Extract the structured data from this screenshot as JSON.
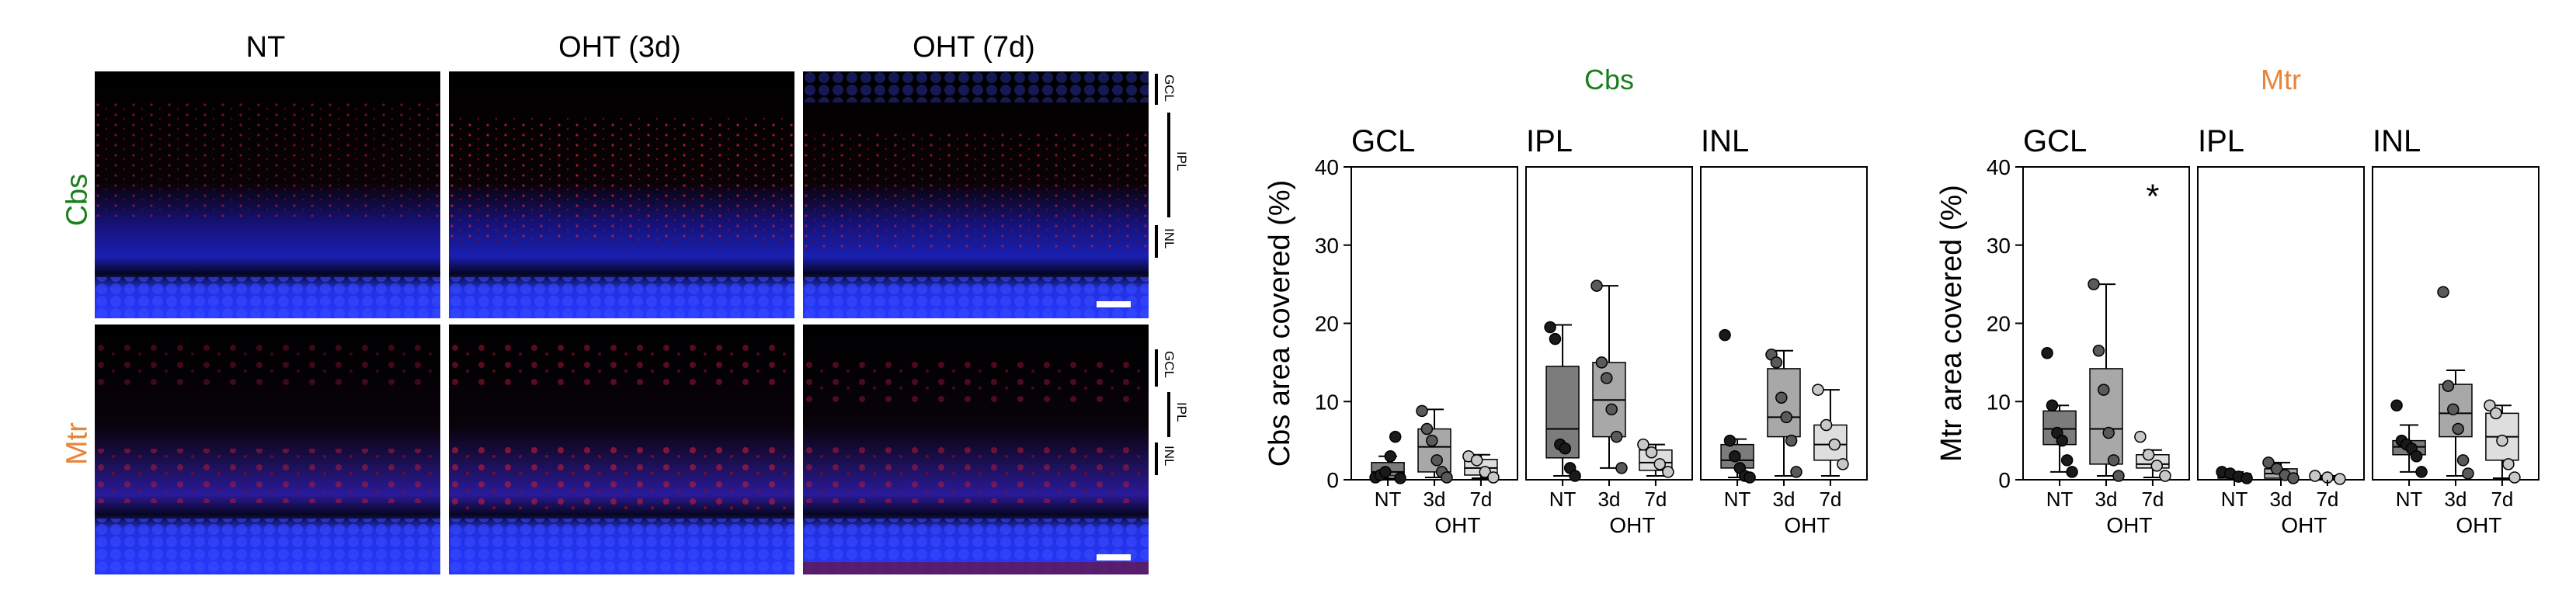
{
  "micrographs": {
    "column_titles": [
      "NT",
      "OHT (3d)",
      "OHT (7d)"
    ],
    "row_labels": [
      {
        "text": "Cbs",
        "color": "#1a7f1a"
      },
      {
        "text": "Mtr",
        "color": "#e8843a"
      }
    ],
    "layer_labels": [
      "GCL",
      "IPL",
      "INL"
    ]
  },
  "chart_data": [
    {
      "type": "box",
      "title": "Cbs",
      "title_color": "#1a7f1a",
      "ylabel": "Cbs area covered (%)",
      "ylim": [
        0,
        40
      ],
      "yticks": [
        0,
        10,
        20,
        30,
        40
      ],
      "categories": [
        "NT",
        "3d",
        "7d"
      ],
      "group_label": "OHT",
      "panels": [
        {
          "name": "GCL",
          "boxes": [
            {
              "category": "NT",
              "q1": 0.5,
              "median": 1.0,
              "q3": 2.2,
              "whisker_low": 0.2,
              "whisker_high": 3.0,
              "points": [
                0.3,
                0.6,
                1.0,
                3.0,
                5.5,
                0.2
              ]
            },
            {
              "category": "3d",
              "q1": 1.0,
              "median": 4.2,
              "q3": 6.5,
              "whisker_low": 0.3,
              "whisker_high": 9.0,
              "points": [
                8.8,
                6.5,
                5.0,
                2.5,
                1.0,
                0.3
              ]
            },
            {
              "category": "7d",
              "q1": 0.6,
              "median": 1.5,
              "q3": 2.6,
              "whisker_low": 0.2,
              "whisker_high": 3.2,
              "points": [
                3.0,
                2.5,
                1.0,
                0.3
              ]
            }
          ]
        },
        {
          "name": "IPL",
          "boxes": [
            {
              "category": "NT",
              "q1": 2.8,
              "median": 6.5,
              "q3": 14.5,
              "whisker_low": 0.5,
              "whisker_high": 19.8,
              "points": [
                19.5,
                18.0,
                4.5,
                4.0,
                1.5,
                0.5
              ]
            },
            {
              "category": "3d",
              "q1": 5.5,
              "median": 10.2,
              "q3": 15.0,
              "whisker_low": 1.5,
              "whisker_high": 24.8,
              "points": [
                24.8,
                15.0,
                13.0,
                9.0,
                5.5,
                1.5
              ]
            },
            {
              "category": "7d",
              "q1": 1.2,
              "median": 2.2,
              "q3": 3.8,
              "whisker_low": 0.5,
              "whisker_high": 4.5,
              "points": [
                4.5,
                3.5,
                2.0,
                1.0
              ]
            }
          ]
        },
        {
          "name": "INL",
          "boxes": [
            {
              "category": "NT",
              "q1": 1.5,
              "median": 2.5,
              "q3": 4.5,
              "whisker_low": 0.3,
              "whisker_high": 5.2,
              "points": [
                18.5,
                5.0,
                3.0,
                1.5,
                0.5,
                0.3
              ]
            },
            {
              "category": "3d",
              "q1": 5.5,
              "median": 8.0,
              "q3": 14.2,
              "whisker_low": 0.5,
              "whisker_high": 16.5,
              "points": [
                16.0,
                15.0,
                10.5,
                8.0,
                5.0,
                1.0
              ]
            },
            {
              "category": "7d",
              "q1": 2.5,
              "median": 4.5,
              "q3": 7.0,
              "whisker_low": 0.5,
              "whisker_high": 11.5,
              "points": [
                11.5,
                7.0,
                4.5,
                2.0
              ]
            }
          ]
        }
      ],
      "annotations": []
    },
    {
      "type": "box",
      "title": "Mtr",
      "title_color": "#e8843a",
      "ylabel": "Mtr area covered (%)",
      "ylim": [
        0,
        40
      ],
      "yticks": [
        0,
        10,
        20,
        30,
        40
      ],
      "categories": [
        "NT",
        "3d",
        "7d"
      ],
      "group_label": "OHT",
      "panels": [
        {
          "name": "GCL",
          "boxes": [
            {
              "category": "NT",
              "q1": 4.5,
              "median": 6.5,
              "q3": 8.8,
              "whisker_low": 1.0,
              "whisker_high": 9.5,
              "points": [
                16.2,
                9.5,
                6.0,
                5.0,
                2.5,
                1.0
              ]
            },
            {
              "category": "3d",
              "q1": 2.0,
              "median": 6.5,
              "q3": 14.2,
              "whisker_low": 0.5,
              "whisker_high": 25.0,
              "points": [
                25.0,
                16.5,
                11.5,
                6.0,
                2.5,
                0.5
              ]
            },
            {
              "category": "7d",
              "q1": 1.5,
              "median": 2.0,
              "q3": 3.2,
              "whisker_low": 0.3,
              "whisker_high": 3.8,
              "points": [
                5.5,
                3.2,
                1.8,
                0.5
              ]
            }
          ]
        },
        {
          "name": "IPL",
          "boxes": [
            {
              "category": "NT",
              "q1": 0.2,
              "median": 0.5,
              "q3": 0.8,
              "whisker_low": 0.0,
              "whisker_high": 1.0,
              "points": [
                1.0,
                0.8,
                0.4,
                0.2
              ]
            },
            {
              "category": "3d",
              "q1": 0.2,
              "median": 0.8,
              "q3": 1.4,
              "whisker_low": 0.0,
              "whisker_high": 2.2,
              "points": [
                2.2,
                1.4,
                0.6,
                0.2
              ]
            },
            {
              "category": "7d",
              "q1": 0.05,
              "median": 0.2,
              "q3": 0.4,
              "whisker_low": 0.0,
              "whisker_high": 0.5,
              "points": [
                0.5,
                0.3,
                0.1
              ]
            }
          ]
        },
        {
          "name": "INL",
          "boxes": [
            {
              "category": "NT",
              "q1": 3.2,
              "median": 4.2,
              "q3": 5.0,
              "whisker_low": 1.0,
              "whisker_high": 7.0,
              "points": [
                9.5,
                5.0,
                4.5,
                4.0,
                3.0,
                1.0
              ]
            },
            {
              "category": "3d",
              "q1": 5.5,
              "median": 8.5,
              "q3": 12.2,
              "whisker_low": 0.5,
              "whisker_high": 14.0,
              "points": [
                24.0,
                12.0,
                9.0,
                6.5,
                2.5,
                0.8
              ]
            },
            {
              "category": "7d",
              "q1": 2.5,
              "median": 5.5,
              "q3": 8.5,
              "whisker_low": 0.2,
              "whisker_high": 9.5,
              "points": [
                9.5,
                8.5,
                5.0,
                2.0,
                0.3
              ]
            }
          ]
        }
      ],
      "annotations": [
        {
          "panel": "GCL",
          "category": "7d",
          "text": "*",
          "y": 36
        }
      ]
    }
  ]
}
